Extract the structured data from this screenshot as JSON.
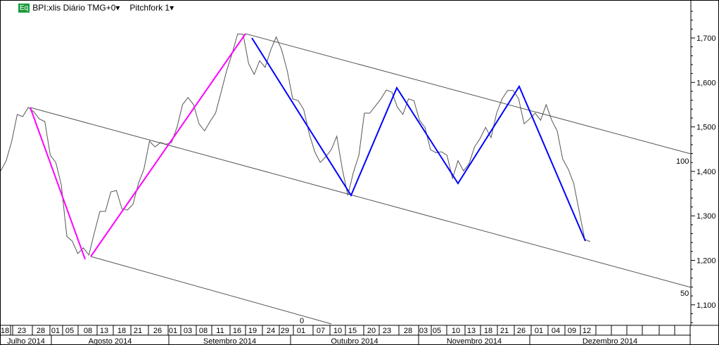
{
  "header": {
    "badge": "Eq",
    "symbol": "BPI:xlis Diário TMG+0▾",
    "study": "Pitchfork 1▾"
  },
  "chart_data": {
    "type": "line",
    "title": "",
    "y_axis": {
      "position": "right",
      "ticks": [
        1100,
        1200,
        1300,
        1400,
        1500,
        1600,
        1700
      ],
      "tick_labels": [
        "1,100",
        "1,200",
        "1,300",
        "1,400",
        "1,500",
        "1,600",
        "1,700"
      ],
      "ylim": [
        1050,
        1780
      ]
    },
    "x_axis": {
      "day_labels": [
        "18",
        "23",
        "28",
        "01",
        "05",
        "08",
        "13",
        "18",
        "21",
        "26",
        "01",
        "03",
        "08",
        "11",
        "16",
        "19",
        "24",
        "29",
        "01",
        "07",
        "10",
        "15",
        "20",
        "23",
        "28",
        "03",
        "05",
        "10",
        "13",
        "18",
        "21",
        "26",
        "01",
        "04",
        "09",
        "12"
      ],
      "months": [
        "Julho 2014",
        "Agosto 2014",
        "Setembro 2014",
        "Outubro 2014",
        "Novembro 2014",
        "Dezembro 2014"
      ]
    },
    "series": [
      {
        "color": "#555555",
        "values": [
          1401,
          1424,
          1468,
          1528,
          1523,
          1544,
          1534,
          1518,
          1512,
          1436,
          1420,
          1370,
          1254,
          1243,
          1215,
          1228,
          1212,
          1262,
          1310,
          1310,
          1354,
          1357,
          1316,
          1313,
          1326,
          1373,
          1405,
          1468,
          1455,
          1465,
          1461,
          1465,
          1499,
          1550,
          1566,
          1550,
          1507,
          1491,
          1512,
          1531,
          1578,
          1626,
          1665,
          1709,
          1708,
          1642,
          1618,
          1649,
          1634,
          1673,
          1702,
          1673,
          1626,
          1563,
          1559,
          1539,
          1484,
          1444,
          1420,
          1433,
          1449,
          1479,
          1405,
          1346,
          1397,
          1436,
          1531,
          1531,
          1547,
          1563,
          1583,
          1578,
          1544,
          1528,
          1563,
          1559,
          1515,
          1499,
          1449,
          1442,
          1444,
          1436,
          1384,
          1424,
          1401,
          1417,
          1455,
          1474,
          1499,
          1476,
          1531,
          1563,
          1582,
          1582,
          1563,
          1507,
          1518,
          1531,
          1515,
          1550,
          1515,
          1491,
          1428,
          1405,
          1373,
          1310,
          1247,
          1242
        ]
      }
    ],
    "pitchfork": {
      "name": "Pitchfork 1",
      "level_labels": [
        "100",
        "50",
        "0"
      ],
      "color": "#555555"
    },
    "trend_lines": [
      {
        "color": "#ff00ff"
      },
      {
        "color": "#0000ff"
      }
    ]
  }
}
